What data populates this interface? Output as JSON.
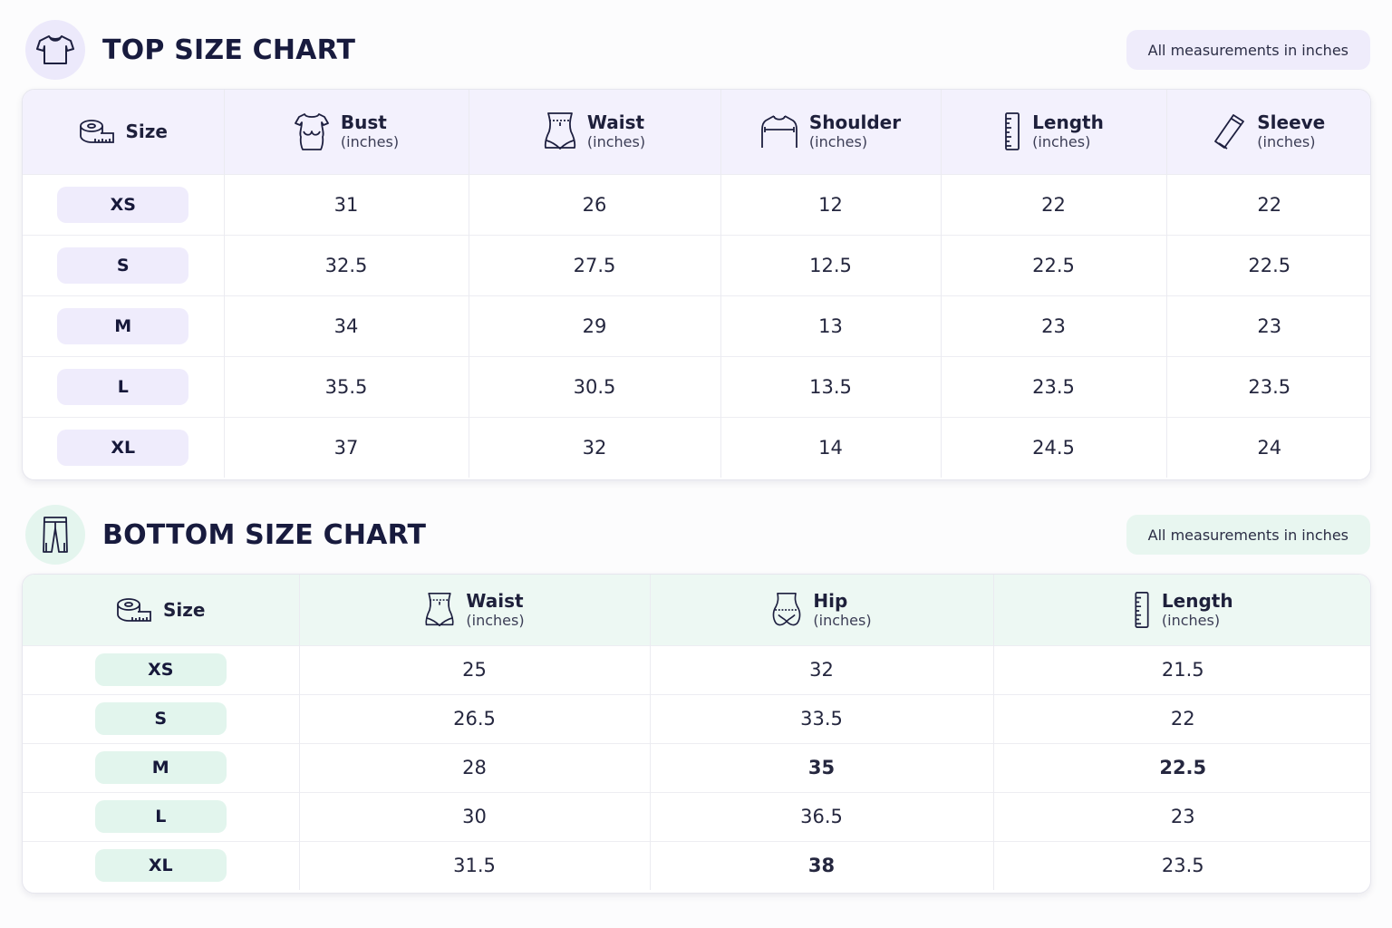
{
  "colors": {
    "top_accent": "#ece9fb",
    "bottom_accent": "#e4f5ee",
    "text": "#181b3e"
  },
  "top": {
    "title": "TOP SIZE CHART",
    "icon": "tshirt-icon",
    "note": "All measurements in inches",
    "size_header": "Size",
    "columns": [
      {
        "name": "Bust",
        "unit": "(inches)",
        "icon": "bust-icon"
      },
      {
        "name": "Waist",
        "unit": "(inches)",
        "icon": "waist-icon"
      },
      {
        "name": "Shoulder",
        "unit": "(inches)",
        "icon": "shoulder-icon"
      },
      {
        "name": "Length",
        "unit": "(inches)",
        "icon": "ruler-icon"
      },
      {
        "name": "Sleeve",
        "unit": "(inches)",
        "icon": "sleeve-icon"
      }
    ],
    "rows": [
      {
        "size": "XS",
        "values": [
          "31",
          "26",
          "12",
          "22",
          "22"
        ]
      },
      {
        "size": "S",
        "values": [
          "32.5",
          "27.5",
          "12.5",
          "22.5",
          "22.5"
        ]
      },
      {
        "size": "M",
        "values": [
          "34",
          "29",
          "13",
          "23",
          "23"
        ]
      },
      {
        "size": "L",
        "values": [
          "35.5",
          "30.5",
          "13.5",
          "23.5",
          "23.5"
        ]
      },
      {
        "size": "XL",
        "values": [
          "37",
          "32",
          "14",
          "24.5",
          "24"
        ]
      }
    ]
  },
  "bottom": {
    "title": "BOTTOM SIZE CHART",
    "icon": "pants-icon",
    "note": "All measurements in inches",
    "size_header": "Size",
    "columns": [
      {
        "name": "Waist",
        "unit": "(inches)",
        "icon": "waist-icon"
      },
      {
        "name": "Hip",
        "unit": "(inches)",
        "icon": "hip-icon"
      },
      {
        "name": "Length",
        "unit": "(inches)",
        "icon": "ruler-icon"
      }
    ],
    "rows": [
      {
        "size": "XS",
        "values": [
          "25",
          "32",
          "21.5"
        ]
      },
      {
        "size": "S",
        "values": [
          "26.5",
          "33.5",
          "22"
        ]
      },
      {
        "size": "M",
        "values": [
          "28",
          "35",
          "22.5"
        ]
      },
      {
        "size": "L",
        "values": [
          "30",
          "36.5",
          "23"
        ]
      },
      {
        "size": "XL",
        "values": [
          "31.5",
          "38",
          "23.5"
        ]
      }
    ]
  }
}
